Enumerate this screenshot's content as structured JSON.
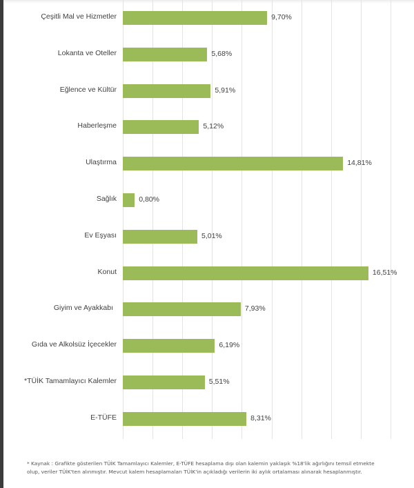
{
  "chart_data": {
    "type": "bar",
    "orientation": "horizontal",
    "title": "",
    "xlabel": "",
    "ylabel": "",
    "xlim": [
      0,
      18
    ],
    "grid": true,
    "grid_step": 2,
    "bar_color": "#9bbb59",
    "categories": [
      "Çeşitli Mal ve Hizmetler",
      "Lokanta ve Oteller",
      "Eğlence ve Kültür",
      "Haberleşme",
      "Ulaştırma",
      "Sağlık",
      "Ev Eşyası",
      "Konut",
      "Giyim ve Ayakkabı",
      "Gıda ve Alkolsüz İçecekler",
      "*TÜİK Tamamlayıcı Kalemler",
      "E-TÜFE"
    ],
    "values": [
      9.7,
      5.68,
      5.91,
      5.12,
      14.81,
      0.8,
      5.01,
      16.51,
      7.93,
      6.19,
      5.51,
      8.31
    ],
    "value_labels": [
      "9,70%",
      "5,68%",
      "5,91%",
      "5,12%",
      "14,81%",
      "0,80%",
      "5,01%",
      "16,51%",
      "7,93%",
      "6,19%",
      "5,51%",
      "8,31%"
    ]
  },
  "footnote": {
    "line1": "*  Kaynak : Grafikte gösterilen TÜİK Tamamlayıcı Kalemler, E-TÜFE hesaplama dışı olan kalemin yaklaşık %18'lik ağırlığını temsil etmekte",
    "line2": "olup, veriler TÜİK'ten alınmıştır. Mevcut kalem hesaplamaları TÜİK'in açıkladığı verilerin iki aylık ortalaması alınarak hesaplanmıştır."
  }
}
